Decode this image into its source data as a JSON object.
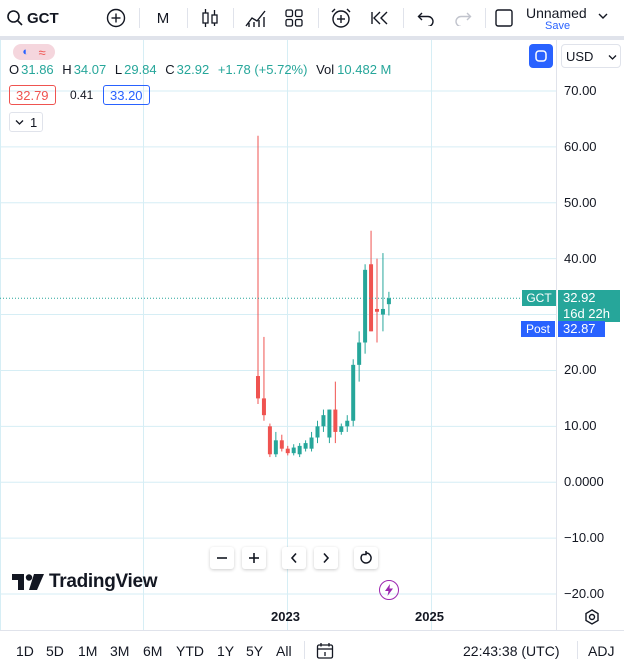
{
  "toolbar": {
    "symbol": "GCT",
    "interval": "M",
    "layout_name": "Unnamed",
    "save_label": "Save"
  },
  "legend": {
    "o_label": "O",
    "o_value": "31.86",
    "h_label": "H",
    "h_value": "34.07",
    "l_label": "L",
    "l_value": "29.84",
    "c_label": "C",
    "c_value": "32.92",
    "change": "+1.78 (+5.72%)",
    "vol_label": "Vol",
    "vol_value": "10.482 M",
    "bid": "32.79",
    "spread": "0.41",
    "ask": "33.20",
    "indicators_count": "1"
  },
  "currency": "USD",
  "price_axis": {
    "ticks": [
      "70.00",
      "60.00",
      "50.00",
      "40.00",
      "30.00",
      "20.00",
      "10.00",
      "0.0000",
      "−10.00",
      "−20.00"
    ]
  },
  "time_axis": {
    "ticks": [
      "2023",
      "2025"
    ]
  },
  "price_labels": {
    "symbol": "GCT",
    "last": "32.92",
    "countdown": "16d 22h",
    "post_label": "Post",
    "post_value": "32.87"
  },
  "logo_text": "TradingView",
  "bottom": {
    "ranges": [
      "1D",
      "5D",
      "1M",
      "3M",
      "6M",
      "YTD",
      "1Y",
      "5Y",
      "All"
    ],
    "time": "22:43:38 (UTC)",
    "adj": "ADJ"
  },
  "colors": {
    "up": "#26a69a",
    "down": "#ef5350",
    "accent": "#2962ff",
    "purple": "#9c27b0"
  },
  "chart_data": {
    "type": "candlestick",
    "symbol": "GCT",
    "interval": "1M",
    "ylim": [
      -20,
      70
    ],
    "ohlc": [
      {
        "o": 19.0,
        "h": 62.0,
        "l": 14.0,
        "c": 15.0
      },
      {
        "o": 15.0,
        "h": 26.0,
        "l": 11.0,
        "c": 12.0
      },
      {
        "o": 10.0,
        "h": 10.5,
        "l": 4.5,
        "c": 5.0
      },
      {
        "o": 5.0,
        "h": 9.0,
        "l": 4.5,
        "c": 7.5
      },
      {
        "o": 7.5,
        "h": 8.5,
        "l": 5.5,
        "c": 6.0
      },
      {
        "o": 6.0,
        "h": 6.5,
        "l": 4.8,
        "c": 5.2
      },
      {
        "o": 5.2,
        "h": 6.8,
        "l": 4.8,
        "c": 6.2
      },
      {
        "o": 5.0,
        "h": 7.0,
        "l": 4.5,
        "c": 6.5
      },
      {
        "o": 6.0,
        "h": 7.5,
        "l": 5.5,
        "c": 7.0
      },
      {
        "o": 6.0,
        "h": 9.0,
        "l": 5.5,
        "c": 8.0
      },
      {
        "o": 8.0,
        "h": 11.0,
        "l": 7.0,
        "c": 10.0
      },
      {
        "o": 10.0,
        "h": 13.0,
        "l": 9.0,
        "c": 12.0
      },
      {
        "o": 8.0,
        "h": 13.0,
        "l": 7.0,
        "c": 13.0
      },
      {
        "o": 13.0,
        "h": 18.0,
        "l": 7.0,
        "c": 9.0
      },
      {
        "o": 9.0,
        "h": 10.5,
        "l": 8.5,
        "c": 10.0
      },
      {
        "o": 10.0,
        "h": 12.0,
        "l": 9.0,
        "c": 11.0
      },
      {
        "o": 11.0,
        "h": 22.0,
        "l": 10.0,
        "c": 21.0
      },
      {
        "o": 21.0,
        "h": 27.0,
        "l": 18.0,
        "c": 25.0
      },
      {
        "o": 25.0,
        "h": 39.0,
        "l": 23.0,
        "c": 38.0
      },
      {
        "o": 39.0,
        "h": 45.0,
        "l": 27.0,
        "c": 27.0
      },
      {
        "o": 31.0,
        "h": 40.0,
        "l": 25.0,
        "c": 30.5
      },
      {
        "o": 30.0,
        "h": 41.0,
        "l": 27.0,
        "c": 31.0
      },
      {
        "o": 31.86,
        "h": 34.07,
        "l": 29.84,
        "c": 32.92
      }
    ]
  }
}
